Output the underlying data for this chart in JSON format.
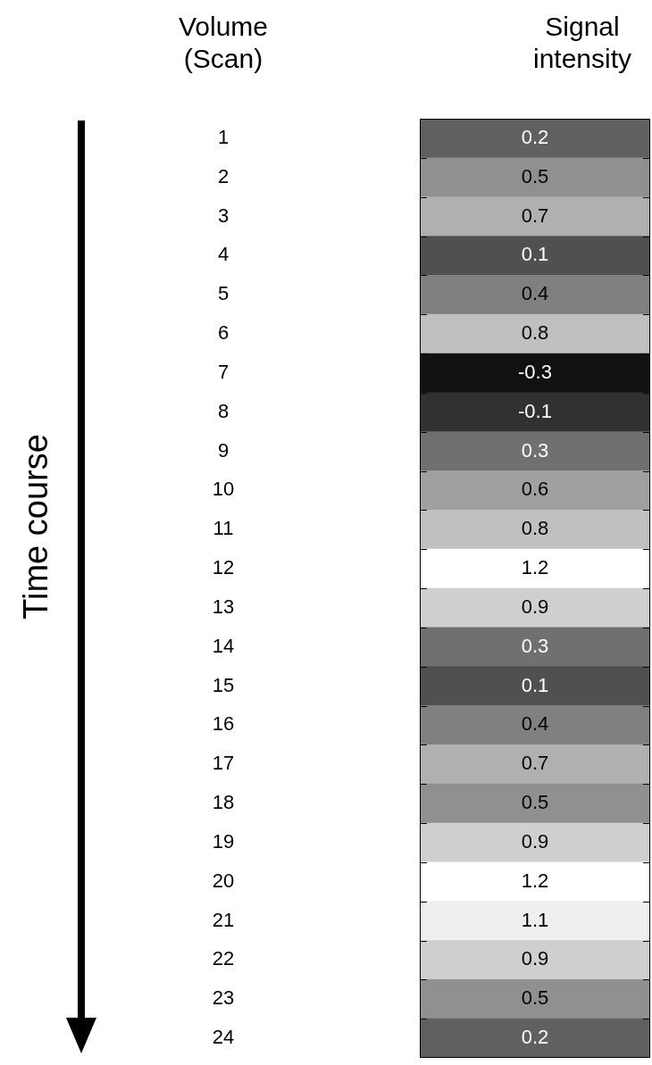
{
  "chart_data": {
    "type": "heatmap",
    "xlabel": "Signal intensity",
    "ylabel": "Time course",
    "annotations": [
      "Volume (Scan)"
    ],
    "categories": [
      null
    ],
    "y_categories": [
      "1",
      "2",
      "3",
      "4",
      "5",
      "6",
      "7",
      "8",
      "9",
      "10",
      "11",
      "12",
      "13",
      "14",
      "15",
      "16",
      "17",
      "18",
      "19",
      "20",
      "21",
      "22",
      "23",
      "24"
    ],
    "cells": [
      [
        0.2
      ],
      [
        0.5
      ],
      [
        0.7
      ],
      [
        0.1
      ],
      [
        0.4
      ],
      [
        0.8
      ],
      [
        -0.3
      ],
      [
        -0.1
      ],
      [
        0.3
      ],
      [
        0.6
      ],
      [
        0.8
      ],
      [
        1.2
      ],
      [
        0.9
      ],
      [
        0.3
      ],
      [
        0.1
      ],
      [
        0.4
      ],
      [
        0.7
      ],
      [
        0.5
      ],
      [
        0.9
      ],
      [
        1.2
      ],
      [
        1.1
      ],
      [
        0.9
      ],
      [
        0.5
      ],
      [
        0.2
      ]
    ],
    "data_labels": true
  }
}
